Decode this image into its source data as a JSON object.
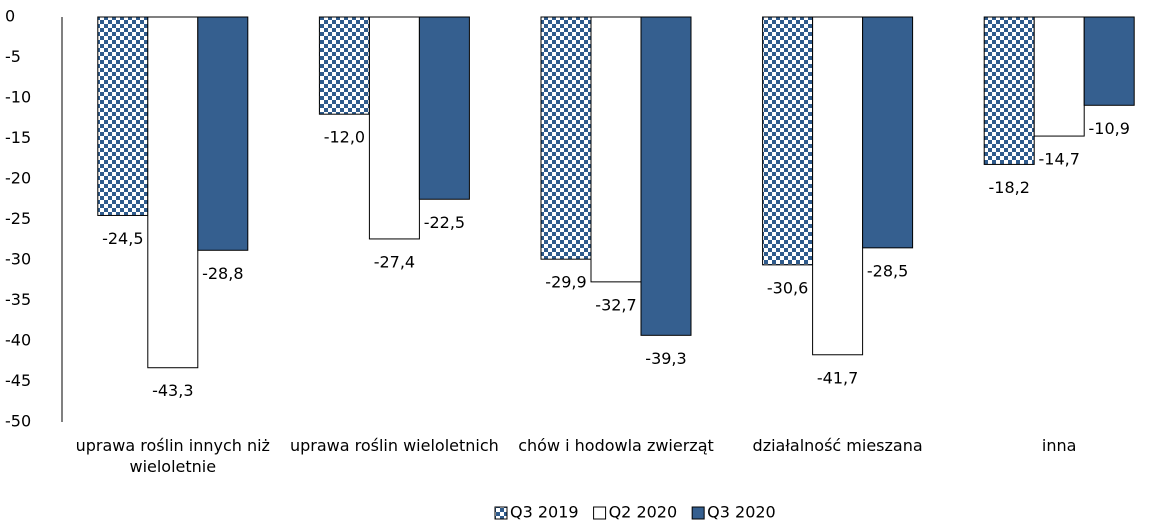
{
  "chart_data": {
    "type": "bar",
    "categories": [
      "uprawa roślin innych niż wieloletnie",
      "uprawa roślin wieloletnich",
      "chów i hodowla zwierząt",
      "działalność mieszana",
      "inna"
    ],
    "series": [
      {
        "name": "Q3 2019",
        "color": "#2f5b8c",
        "pattern": "checker",
        "values": [
          -24.5,
          -12.0,
          -29.9,
          -30.6,
          -18.2
        ],
        "value_labels": [
          "-24,5",
          "-12,0",
          "-29,9",
          "-30,6",
          "-18,2"
        ]
      },
      {
        "name": "Q2 2020",
        "color": "#ffffff",
        "values": [
          -43.3,
          -27.4,
          -32.7,
          -41.7,
          -14.7
        ],
        "value_labels": [
          "-43,3",
          "-27,4",
          "-32,7",
          "-41,7",
          "-14,7"
        ]
      },
      {
        "name": "Q3 2020",
        "color": "#355f8f",
        "values": [
          -28.8,
          -22.5,
          -39.3,
          -28.5,
          -10.9
        ],
        "value_labels": [
          "-28,8",
          "-22,5",
          "-39,3",
          "-28,5",
          "-10,9"
        ]
      }
    ],
    "ylim": [
      -50,
      0
    ],
    "yticks": [
      0,
      -5,
      -10,
      -15,
      -20,
      -25,
      -30,
      -35,
      -40,
      -45,
      -50
    ],
    "legend": "bottom"
  }
}
